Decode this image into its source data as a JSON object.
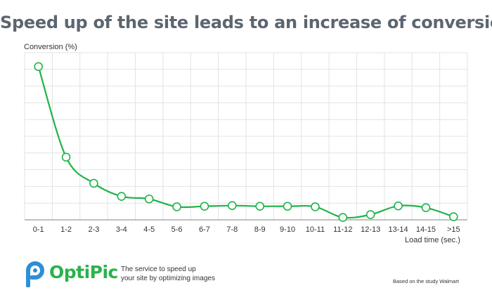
{
  "chart_data": {
    "type": "line",
    "title": "Speed up of the site leads to an increase of conversion",
    "ylabel": "Conversion (%)",
    "xlabel": "Load time (sec.)",
    "categories": [
      "0-1",
      "1-2",
      "2-3",
      "3-4",
      "4-5",
      "5-6",
      "6-7",
      "7-8",
      "8-9",
      "9-10",
      "10-11",
      "11-12",
      "12-13",
      "13-14",
      "14-15",
      ">15"
    ],
    "values": [
      8.8,
      3.6,
      2.1,
      1.35,
      1.2,
      0.75,
      0.78,
      0.82,
      0.78,
      0.78,
      0.75,
      0.14,
      0.3,
      0.8,
      0.7,
      0.18
    ],
    "ylim": [
      0,
      9.6
    ],
    "yticks_shown": false,
    "grid": true,
    "color": "#1fb34a",
    "grid_color": "#e3e3e3"
  },
  "brand": {
    "name": "OptiPic",
    "tagline_lines": [
      "The service to speed up",
      "your site by optimizing images"
    ],
    "color": "#2ab24c",
    "icon_color": "#2d8fd6",
    "icon": "optipic-logo-icon"
  },
  "credit": "Based on the study Walmart"
}
